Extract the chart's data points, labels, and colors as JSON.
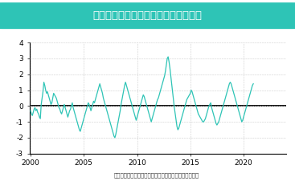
{
  "title": "エルニーニョ監視海域の基準値との差",
  "source_text": "（出所：気象庁より住友商事グローバルリサーチ作成）",
  "line_color": "#2ec4b6",
  "title_bg_color": "#2ec4b6",
  "title_text_color": "#ffffff",
  "bg_color": "#ffffff",
  "grid_color": "#cccccc",
  "zero_line_color": "#000000",
  "ylim": [
    -3,
    4
  ],
  "yticks": [
    -3,
    -2,
    -1,
    0,
    1,
    2,
    3,
    4
  ],
  "xticks": [
    2000,
    2005,
    2010,
    2015,
    2020
  ],
  "xlim": [
    1999.9,
    2024.0
  ],
  "values": [
    -0.3,
    -0.5,
    -0.6,
    -0.4,
    -0.2,
    -0.1,
    -0.3,
    -0.2,
    -0.4,
    -0.5,
    -0.7,
    -0.8,
    0.1,
    0.5,
    0.9,
    1.5,
    1.3,
    1.0,
    0.8,
    0.9,
    0.7,
    0.5,
    0.3,
    0.1,
    0.2,
    0.5,
    0.8,
    0.7,
    0.6,
    0.5,
    0.3,
    0.1,
    -0.1,
    -0.2,
    -0.4,
    -0.5,
    -0.3,
    -0.1,
    0.1,
    -0.1,
    -0.3,
    -0.5,
    -0.7,
    -0.5,
    -0.3,
    -0.2,
    0.0,
    0.2,
    -0.1,
    -0.3,
    -0.5,
    -0.7,
    -0.9,
    -1.1,
    -1.3,
    -1.5,
    -1.6,
    -1.4,
    -1.2,
    -1.0,
    -0.8,
    -0.6,
    -0.4,
    -0.2,
    0.0,
    0.2,
    0.1,
    -0.1,
    -0.3,
    -0.1,
    0.1,
    0.3,
    0.2,
    0.4,
    0.6,
    0.8,
    1.0,
    1.2,
    1.4,
    1.2,
    1.0,
    0.8,
    0.5,
    0.3,
    0.1,
    -0.1,
    -0.3,
    -0.5,
    -0.7,
    -0.9,
    -1.1,
    -1.3,
    -1.5,
    -1.7,
    -1.9,
    -2.0,
    -1.8,
    -1.5,
    -1.2,
    -0.9,
    -0.6,
    -0.3,
    0.1,
    0.4,
    0.7,
    1.0,
    1.3,
    1.5,
    1.3,
    1.1,
    0.9,
    0.7,
    0.5,
    0.3,
    0.1,
    -0.1,
    -0.3,
    -0.5,
    -0.7,
    -0.9,
    -0.7,
    -0.5,
    -0.3,
    -0.1,
    0.1,
    0.3,
    0.5,
    0.7,
    0.6,
    0.4,
    0.2,
    0.0,
    -0.2,
    -0.4,
    -0.6,
    -0.8,
    -1.0,
    -0.8,
    -0.6,
    -0.4,
    -0.2,
    0.0,
    0.2,
    0.4,
    0.5,
    0.7,
    0.9,
    1.1,
    1.3,
    1.5,
    1.7,
    1.9,
    2.2,
    2.6,
    3.0,
    3.1,
    2.8,
    2.4,
    1.9,
    1.4,
    0.9,
    0.4,
    -0.1,
    -0.5,
    -0.9,
    -1.3,
    -1.5,
    -1.4,
    -1.2,
    -1.0,
    -0.8,
    -0.6,
    -0.4,
    -0.2,
    0.0,
    0.2,
    0.4,
    0.5,
    0.6,
    0.7,
    0.8,
    1.0,
    0.9,
    0.7,
    0.5,
    0.3,
    0.1,
    -0.1,
    -0.3,
    -0.5,
    -0.6,
    -0.7,
    -0.8,
    -0.9,
    -1.0,
    -1.0,
    -0.9,
    -0.8,
    -0.6,
    -0.4,
    -0.2,
    0.0,
    0.1,
    0.2,
    -0.1,
    -0.3,
    -0.5,
    -0.7,
    -0.9,
    -1.1,
    -1.2,
    -1.1,
    -1.0,
    -0.8,
    -0.6,
    -0.4,
    -0.2,
    0.0,
    0.2,
    0.4,
    0.6,
    0.8,
    1.0,
    1.2,
    1.4,
    1.5,
    1.4,
    1.2,
    1.0,
    0.8,
    0.6,
    0.4,
    0.2,
    0.0,
    -0.2,
    -0.4,
    -0.6,
    -0.8,
    -1.0,
    -0.9,
    -0.7,
    -0.5,
    -0.3,
    -0.1,
    0.1,
    0.3,
    0.5,
    0.7,
    0.9,
    1.1,
    1.3,
    1.4
  ]
}
